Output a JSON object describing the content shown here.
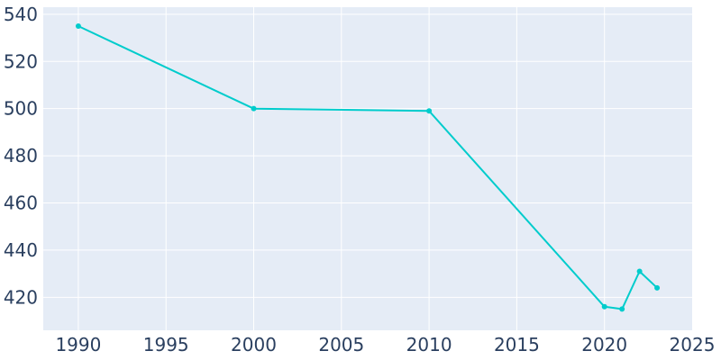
{
  "chart_data": {
    "type": "line",
    "title": "",
    "xlabel": "",
    "ylabel": "",
    "xlim": [
      1988,
      2025
    ],
    "ylim": [
      406,
      543
    ],
    "x_ticks": [
      1990,
      1995,
      2000,
      2005,
      2010,
      2015,
      2020,
      2025
    ],
    "y_ticks": [
      420,
      440,
      460,
      480,
      500,
      520,
      540
    ],
    "grid": true,
    "legend": "none",
    "colors": {
      "line": "#00cccc",
      "plot_bg": "#e5ecf6",
      "grid": "#ffffff",
      "tick_text": "#2a3f5f"
    },
    "series": [
      {
        "x": [
          1990,
          2000,
          2010,
          2020,
          2021,
          2022,
          2023
        ],
        "y": [
          535,
          500,
          499,
          416,
          415,
          431,
          424
        ]
      }
    ]
  }
}
